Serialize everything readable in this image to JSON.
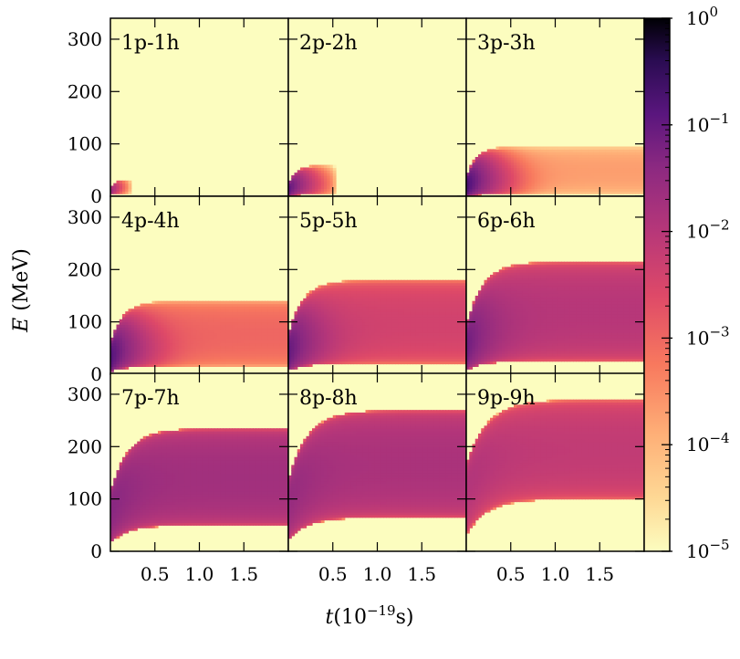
{
  "chart_data": {
    "type": "heatmap",
    "title": "",
    "xlabel_main": "t",
    "xlabel_exp": "−19",
    "xlabel_unit": "s",
    "ylabel_var": "E",
    "ylabel_unit": " (MeV)",
    "xlim": [
      0,
      2.0
    ],
    "ylim": [
      0,
      340
    ],
    "x_ticks": [
      0.5,
      1.0,
      1.5
    ],
    "x_tick_labels": [
      "0.5",
      "1.0",
      "1.5"
    ],
    "y_ticks": [
      0,
      100,
      200,
      300
    ],
    "y_tick_labels": [
      "0",
      "100",
      "200",
      "300"
    ],
    "colorbar": {
      "scale": "log",
      "range": [
        1e-05,
        1
      ],
      "ticks": [
        {
          "base": "10",
          "exp": "0"
        },
        {
          "base": "10",
          "exp": "−1"
        },
        {
          "base": "10",
          "exp": "−2"
        },
        {
          "base": "10",
          "exp": "−3"
        },
        {
          "base": "10",
          "exp": "−4"
        },
        {
          "base": "10",
          "exp": "−5"
        }
      ],
      "colormap": "magma",
      "background_color": "#fcfdbf"
    },
    "grid": false,
    "panels": [
      {
        "label": "1p-1h",
        "e_low": 5,
        "e_high": 32,
        "peak": 0.03,
        "plateau": 0,
        "peak_e": 18,
        "t_extent": 0.22,
        "t_decay": 0.05
      },
      {
        "label": "2p-2h",
        "e_low": 3,
        "e_high": 60,
        "peak": 0.12,
        "plateau": 0,
        "peak_e": 18,
        "t_extent": 0.52,
        "t_decay": 0.1
      },
      {
        "label": "3p-3h",
        "e_low": 3,
        "e_high": 95,
        "peak": 0.2,
        "plateau": 0.0002,
        "peak_e": 20,
        "t_extent": 2.0,
        "t_decay": 0.12
      },
      {
        "label": "4p-4h",
        "e_low": 15,
        "e_high": 140,
        "peak": 0.15,
        "plateau": 0.001,
        "peak_e": 30,
        "t_extent": 2.0,
        "t_decay": 0.15
      },
      {
        "label": "5p-5h",
        "e_low": 20,
        "e_high": 180,
        "peak": 0.1,
        "plateau": 0.004,
        "peak_e": 40,
        "t_extent": 2.0,
        "t_decay": 0.18
      },
      {
        "label": "6p-6h",
        "e_low": 25,
        "e_high": 215,
        "peak": 0.07,
        "plateau": 0.01,
        "peak_e": 60,
        "t_extent": 2.0,
        "t_decay": 0.2
      },
      {
        "label": "7p-7h",
        "e_low": 50,
        "e_high": 235,
        "peak": 0.03,
        "plateau": 0.02,
        "peak_e": 120,
        "t_extent": 2.0,
        "t_decay": 0.22
      },
      {
        "label": "8p-8h",
        "e_low": 65,
        "e_high": 270,
        "peak": 0.02,
        "plateau": 0.015,
        "peak_e": 150,
        "t_extent": 2.0,
        "t_decay": 0.24
      },
      {
        "label": "9p-9h",
        "e_low": 100,
        "e_high": 290,
        "peak": 0.008,
        "plateau": 0.007,
        "peak_e": 190,
        "t_extent": 2.0,
        "t_decay": 0.26
      }
    ]
  }
}
